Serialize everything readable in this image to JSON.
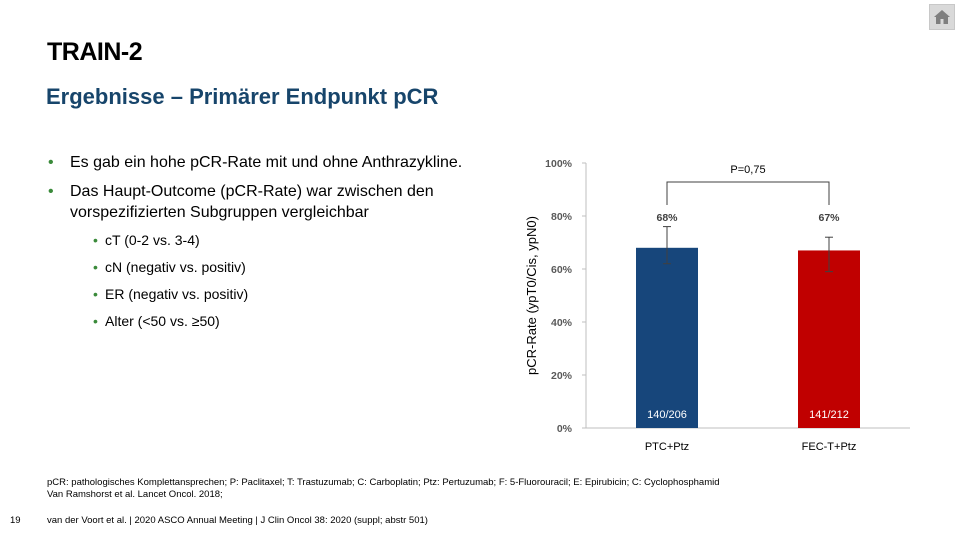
{
  "home_button": {
    "icon": "home-icon"
  },
  "title": "TRAIN-2",
  "subtitle": "Ergebnisse – Primärer Endpunkt pCR",
  "bullets": [
    {
      "text": "Es gab ein hohe pCR-Rate mit und ohne Anthrazykline."
    },
    {
      "text": "Das Haupt-Outcome (pCR-Rate) war zwischen den vorspezifizierten Subgruppen vergleichbar"
    }
  ],
  "sub_bullets": [
    {
      "text": "cT (0-2 vs. 3-4)"
    },
    {
      "text": "cN (negativ vs. positiv)"
    },
    {
      "text": "ER (negativ vs. positiv)"
    },
    {
      "text": "Alter (<50 vs. ≥50)"
    }
  ],
  "chart_data": {
    "type": "bar",
    "categories": [
      "PTC+Ptz",
      "FEC-T+Ptz"
    ],
    "values": [
      68,
      67
    ],
    "value_labels": [
      "68%",
      "67%"
    ],
    "counts": [
      "140/206",
      "141/212"
    ],
    "error_bars": [
      [
        62,
        76
      ],
      [
        59,
        72
      ]
    ],
    "colors": [
      "#17467b",
      "#c00000"
    ],
    "ylabel": "pCR-Rate (ypT0/Cis, ypN0)",
    "ylim": [
      0,
      100
    ],
    "yticks": [
      0,
      20,
      40,
      60,
      80,
      100
    ],
    "ytick_labels": [
      "0%",
      "20%",
      "40%",
      "60%",
      "80%",
      "100%"
    ],
    "annotation": "P=0,75",
    "grid": false
  },
  "footnotes": {
    "abbreviations": "pCR: pathologisches Komplettansprechen; P: Paclitaxel; T: Trastuzumab; C: Carboplatin; Ptz: Pertuzumab; F: 5-Fluorouracil; E: Epirubicin; C: Cyclophosphamid",
    "reference": "Van Ramshorst et al. Lancet Oncol. 2018;"
  },
  "footer": {
    "page_number": "19",
    "citation": "van der Voort et al. | 2020 ASCO Annual Meeting | J Clin Oncol 38: 2020 (suppl; abstr 501)"
  }
}
